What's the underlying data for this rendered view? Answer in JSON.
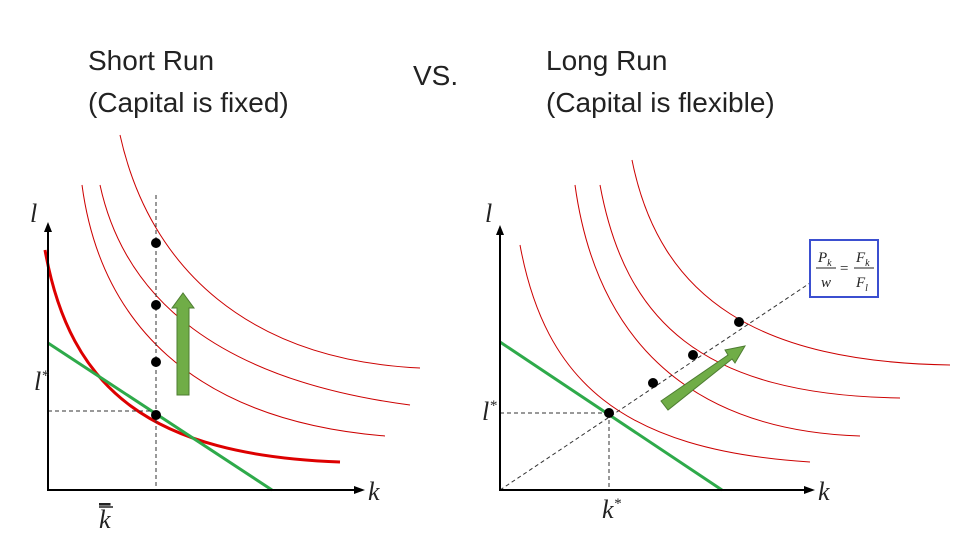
{
  "header": {
    "left_title": [
      "Short Run",
      "(Capital is fixed)"
    ],
    "separator": "VS.",
    "right_title": [
      "Long Run",
      "(Capital is flexible)"
    ]
  },
  "left_panel": {
    "y_axis_label": "l",
    "x_axis_label": "k",
    "y_marker": {
      "base": "l",
      "sup": "*"
    },
    "x_marker": {
      "base": "k"
    }
  },
  "right_panel": {
    "y_axis_label": "l",
    "x_axis_label": "k",
    "y_marker": {
      "base": "l",
      "sup": "*"
    },
    "x_marker": {
      "base": "k",
      "sup": "*"
    },
    "formula": {
      "lhs_num": "P",
      "lhs_num_sub": "k",
      "lhs_den": "w",
      "equals": "=",
      "rhs_num": "F",
      "rhs_num_sub": "k",
      "rhs_den": "F",
      "rhs_den_sub": "l"
    }
  }
}
